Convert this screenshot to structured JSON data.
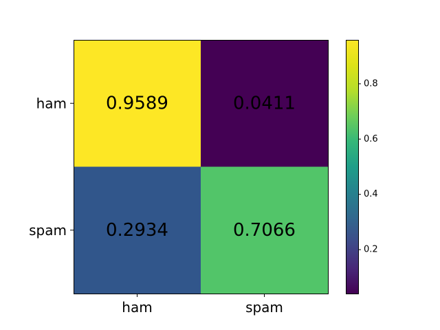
{
  "chart_data": {
    "type": "heatmap",
    "title": "",
    "xlabel": "",
    "ylabel": "",
    "x_categories": [
      "ham",
      "spam"
    ],
    "y_categories": [
      "ham",
      "spam"
    ],
    "values": [
      [
        0.9589,
        0.0411
      ],
      [
        0.2934,
        0.7066
      ]
    ],
    "cell_labels": [
      [
        "0.9589",
        "0.0411"
      ],
      [
        "0.2934",
        "0.7066"
      ]
    ],
    "colormap": "viridis",
    "cell_colors": [
      [
        "#fde725",
        "#440154"
      ],
      [
        "#31568b",
        "#52c569"
      ]
    ],
    "colorbar": {
      "range": [
        0.0411,
        0.9589
      ],
      "ticks": [
        0.2,
        0.4,
        0.6,
        0.8
      ],
      "tick_labels": [
        "0.2",
        "0.4",
        "0.6",
        "0.8"
      ]
    }
  }
}
